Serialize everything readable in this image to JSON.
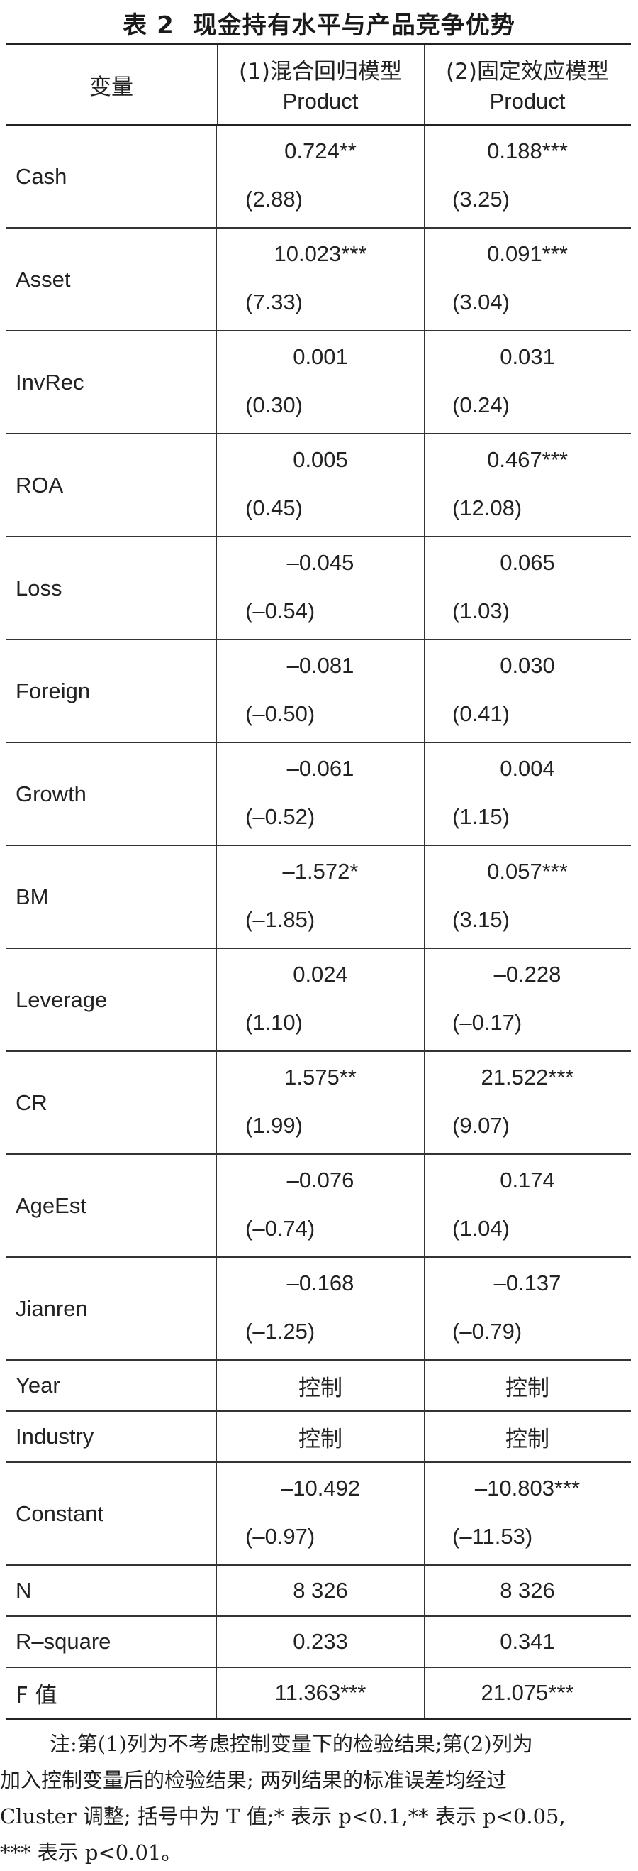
{
  "title": {
    "number": "表 2",
    "text": "现金持有水平与产品竞争优势"
  },
  "header": {
    "variable": "变量",
    "col1": {
      "line1": "(1)混合回归模型",
      "line2": "Product"
    },
    "col2": {
      "line1": "(2)固定效应模型",
      "line2": "Product"
    }
  },
  "rows": [
    {
      "label": "Cash",
      "c1": "0.724**",
      "t1": "(2.88)",
      "c2": "0.188***",
      "t2": "(3.25)"
    },
    {
      "label": "Asset",
      "c1": "10.023***",
      "t1": "(7.33)",
      "c2": "0.091***",
      "t2": "(3.04)"
    },
    {
      "label": "InvRec",
      "c1": "0.001",
      "t1": "(0.30)",
      "c2": "0.031",
      "t2": "(0.24)"
    },
    {
      "label": "ROA",
      "c1": "0.005",
      "t1": "(0.45)",
      "c2": "0.467***",
      "t2": "(12.08)"
    },
    {
      "label": "Loss",
      "c1": "–0.045",
      "t1": "(–0.54)",
      "c2": "0.065",
      "t2": "(1.03)"
    },
    {
      "label": "Foreign",
      "c1": "–0.081",
      "t1": "(–0.50)",
      "c2": "0.030",
      "t2": "(0.41)"
    },
    {
      "label": "Growth",
      "c1": "–0.061",
      "t1": "(–0.52)",
      "c2": "0.004",
      "t2": "(1.15)"
    },
    {
      "label": "BM",
      "c1": "–1.572*",
      "t1": "(–1.85)",
      "c2": "0.057***",
      "t2": "(3.15)"
    },
    {
      "label": "Leverage",
      "c1": "0.024",
      "t1": "(1.10)",
      "c2": "–0.228",
      "t2": "(–0.17)"
    },
    {
      "label": "CR",
      "c1": "1.575**",
      "t1": "(1.99)",
      "c2": "21.522***",
      "t2": "(9.07)"
    },
    {
      "label": "AgeEst",
      "c1": "–0.076",
      "t1": "(–0.74)",
      "c2": "0.174",
      "t2": "(1.04)"
    },
    {
      "label": "Jianren",
      "c1": "–0.168",
      "t1": "(–1.25)",
      "c2": "–0.137",
      "t2": "(–0.79)"
    }
  ],
  "year": {
    "label": "Year",
    "c1": "控制",
    "c2": "控制"
  },
  "industry": {
    "label": "Industry",
    "c1": "控制",
    "c2": "控制"
  },
  "constant": {
    "label": "Constant",
    "c1": "–10.492",
    "t1": "(–0.97)",
    "c2": "–10.803***",
    "t2": "(–11.53)"
  },
  "n": {
    "label": "N",
    "c1": "8 326",
    "c2": "8 326"
  },
  "rsq": {
    "label": "R–square",
    "c1": "0.233",
    "c2": "0.341"
  },
  "f": {
    "label": "F 值",
    "c1": "11.363***",
    "c2": "21.075***"
  },
  "note": {
    "line1": "注:第(1)列为不考虑控制变量下的检验结果;第(2)列为",
    "line2": "加入控制变量后的检验结果; 两列结果的标准误差均经过",
    "line3": "Cluster 调整; 括号中为 T 值;* 表示 p<0.1,** 表示 p<0.05,",
    "line4": "*** 表示 p<0.01。"
  }
}
